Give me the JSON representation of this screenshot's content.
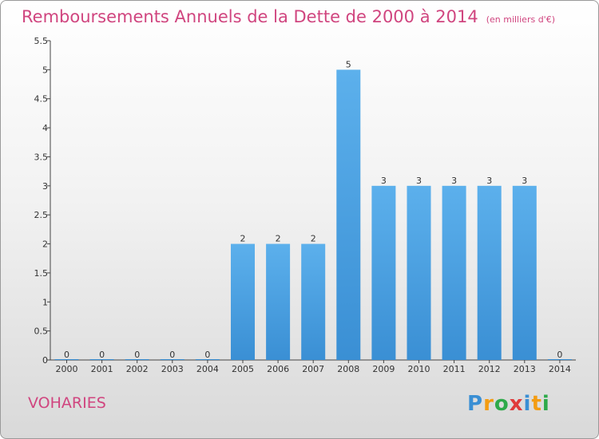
{
  "chart_data": {
    "type": "bar",
    "title": "Remboursements Annuels de la Dette de 2000 à 2014",
    "unit": "(en milliers d'€)",
    "categories": [
      "2000",
      "2001",
      "2002",
      "2003",
      "2004",
      "2005",
      "2006",
      "2007",
      "2008",
      "2009",
      "2010",
      "2011",
      "2012",
      "2013",
      "2014"
    ],
    "values": [
      0,
      0,
      0,
      0,
      0,
      2,
      2,
      2,
      5,
      3,
      3,
      3,
      3,
      3,
      0
    ],
    "ylim": [
      0,
      5.5
    ],
    "yticks": [
      "0",
      "0.5",
      "1",
      "1.5",
      "2",
      "2.5",
      "3",
      "3.5",
      "4",
      "4.5",
      "5",
      "5.5"
    ],
    "grid": false,
    "bar_color": "#3a8fd4"
  },
  "location": "VOHARIES",
  "brand": {
    "letters": [
      "P",
      "r",
      "o",
      "x",
      "i",
      "t",
      "i"
    ],
    "colors": [
      "#3a8fd4",
      "#f39c12",
      "#2eaa4a",
      "#e03a3a",
      "#3a8fd4",
      "#f39c12",
      "#2eaa4a"
    ]
  }
}
